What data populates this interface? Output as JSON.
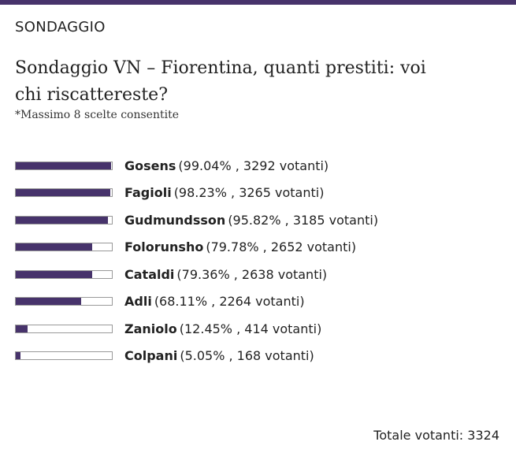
{
  "header": {
    "label": "SONDAGGIO"
  },
  "chart_data": {
    "type": "bar",
    "orientation": "horizontal",
    "title": "Sondaggio VN – Fiorentina, quanti prestiti: voi chi riscattereste?",
    "subtitle": "*Massimo 8 scelte consentite",
    "categories": [
      "Gosens",
      "Fagioli",
      "Gudmundsson",
      "Folorunsho",
      "Cataldi",
      "Adli",
      "Zaniolo",
      "Colpani"
    ],
    "values": [
      99.04,
      98.23,
      95.82,
      79.78,
      79.36,
      68.11,
      12.45,
      5.05
    ],
    "value_labels": [
      "(99.04% , 3292 votanti)",
      "(98.23% , 3265 votanti)",
      "(95.82% , 3185 votanti)",
      "(79.78% , 2652 votanti)",
      "(79.36% , 2638 votanti)",
      "(68.11% , 2264 votanti)",
      "(12.45% , 414 votanti)",
      "(5.05% , 168 votanti)"
    ],
    "xlim": [
      0,
      100
    ],
    "color": "#47336b"
  },
  "footer": {
    "total_label": "Totale votanti:",
    "total": 3324
  }
}
